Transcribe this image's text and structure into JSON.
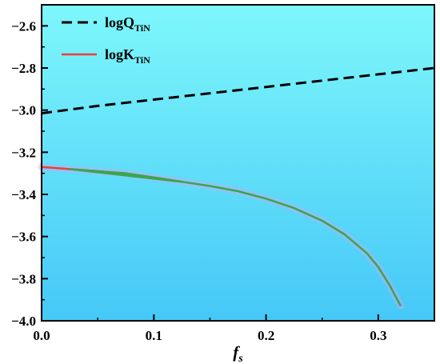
{
  "chart_data": {
    "type": "line",
    "title": "",
    "xlabel": "f_s",
    "xlabel_main": "f",
    "xlabel_sub": "s",
    "ylabel": "",
    "xlim": [
      0.0,
      0.35
    ],
    "ylim": [
      -4.0,
      -2.5
    ],
    "x_ticks": [
      0.0,
      0.1,
      0.2,
      0.3
    ],
    "x_tick_labels": [
      "0.0",
      "0.1",
      "0.2",
      "0.3"
    ],
    "y_ticks": [
      -2.6,
      -2.8,
      -3.0,
      -3.2,
      -3.4,
      -3.6,
      -3.8,
      -4.0
    ],
    "y_tick_labels": [
      "−2.6",
      "−2.8",
      "−3.0",
      "−3.2",
      "−3.4",
      "−3.6",
      "−3.8",
      "−4.0"
    ],
    "grid": false,
    "legend_position": "top-left",
    "background_gradient": [
      "#7ef7fb",
      "#45c8f7"
    ],
    "series": [
      {
        "name": "logQTiN",
        "name_main": "logQ",
        "name_sub": "TiN",
        "style": "dashed",
        "color": "#000000",
        "x": [
          0.0,
          0.05,
          0.1,
          0.15,
          0.2,
          0.25,
          0.3,
          0.35
        ],
        "y": [
          -3.015,
          -2.98,
          -2.95,
          -2.92,
          -2.89,
          -2.86,
          -2.83,
          -2.8
        ]
      },
      {
        "name": "logKTiN",
        "name_main": "logK",
        "name_sub": "TiN",
        "style": "solid",
        "color": "#e8403a",
        "color_after": "#3aa54a",
        "switch_x": 0.135,
        "x": [
          0.0,
          0.025,
          0.05,
          0.075,
          0.1,
          0.125,
          0.15,
          0.175,
          0.2,
          0.225,
          0.25,
          0.27,
          0.29,
          0.3,
          0.31,
          0.32
        ],
        "y": [
          -3.27,
          -3.28,
          -3.29,
          -3.3,
          -3.32,
          -3.34,
          -3.36,
          -3.385,
          -3.42,
          -3.465,
          -3.525,
          -3.59,
          -3.68,
          -3.745,
          -3.83,
          -3.93
        ]
      }
    ]
  }
}
